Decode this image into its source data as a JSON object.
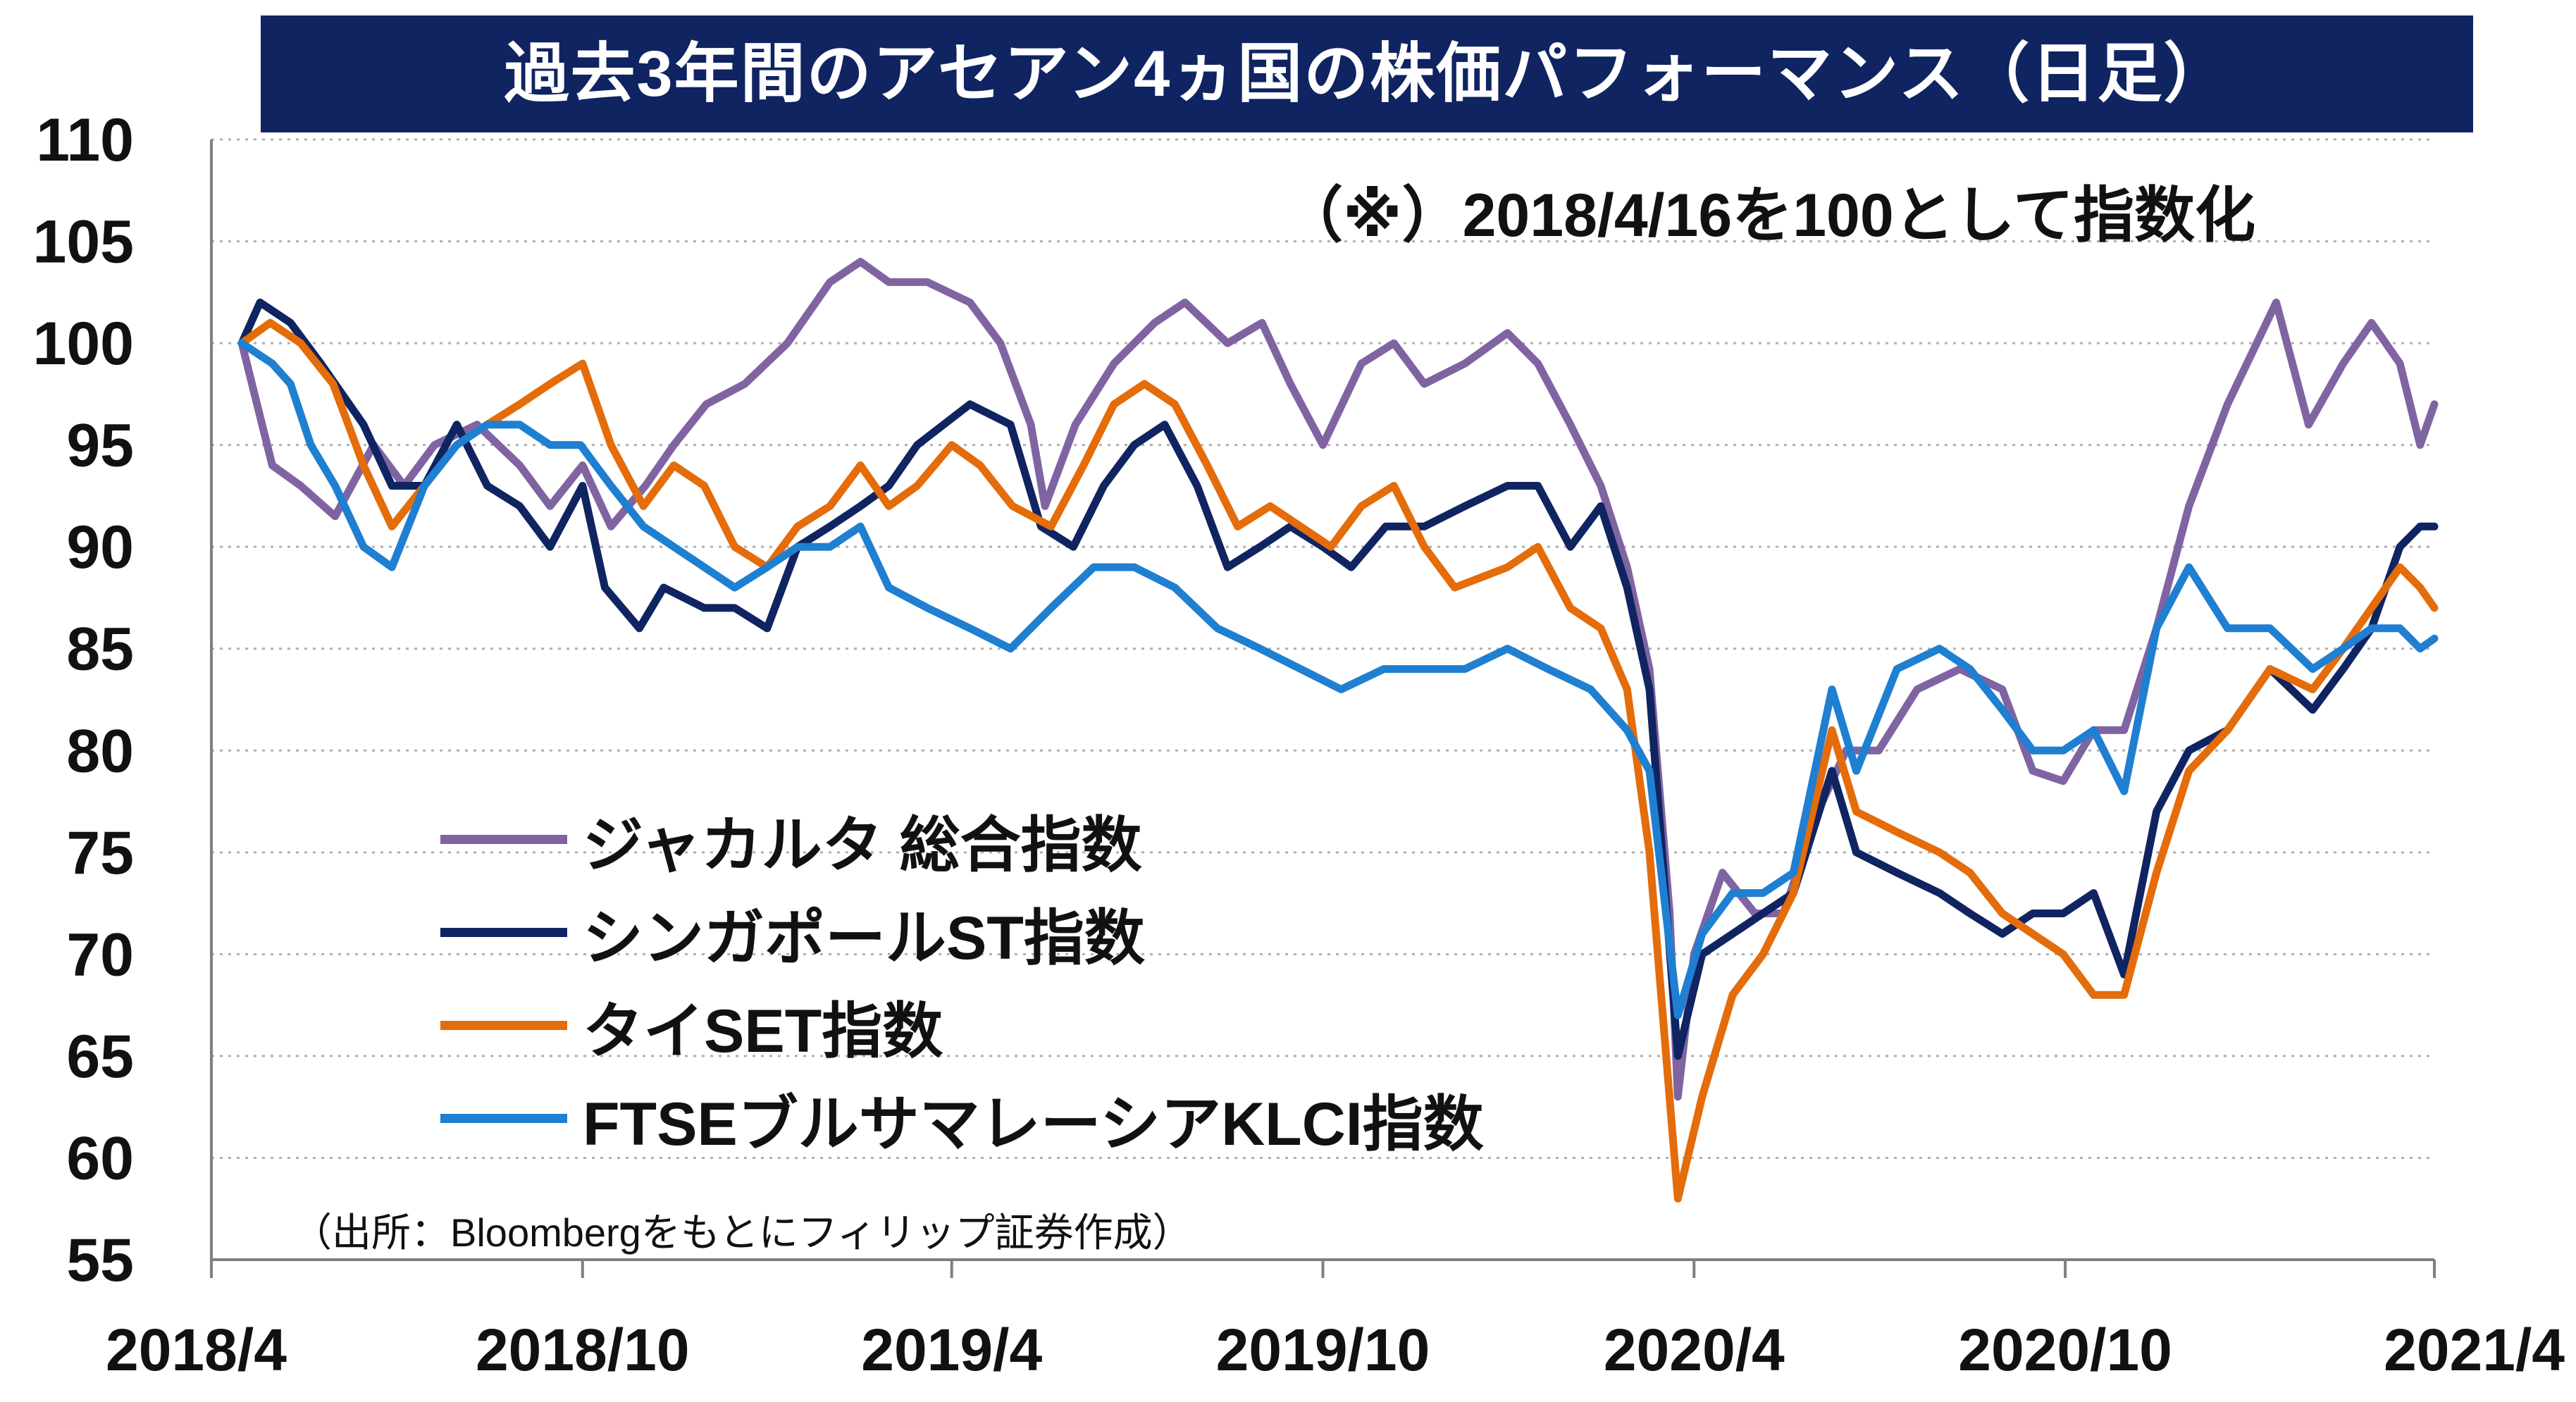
{
  "title": "過去3年間のアセアン4ヵ国の株価パフォーマンス（日足）",
  "note": "（※）2018/4/16を100として指数化",
  "source": "（出所：Bloombergをもとにフィリップ証券作成）",
  "colors": {
    "title_bg": "#0f2461",
    "title_text": "#ffffff",
    "grid": "#b0b0b0",
    "axis": "#7f7f7f"
  },
  "chart_data": {
    "type": "line",
    "title": "過去3年間のアセアン4ヵ国の株価パフォーマンス（日足）",
    "xlabel": "",
    "ylabel": "",
    "ylim": [
      55,
      110
    ],
    "y_ticks": [
      110,
      105,
      100,
      95,
      90,
      85,
      80,
      75,
      70,
      65,
      60,
      55
    ],
    "x_ticks": [
      "2018/4",
      "2018/10",
      "2019/4",
      "2019/10",
      "2020/4",
      "2020/10",
      "2021/4"
    ],
    "x_tick_dates": [
      "2018-04-01",
      "2018-10-01",
      "2019-04-01",
      "2019-10-01",
      "2020-04-01",
      "2020-10-01",
      "2021-04-01"
    ],
    "grid": true,
    "legend_position": "lower-left",
    "series": [
      {
        "name": "ジャカルタ 総合指数",
        "color": "#8064a2",
        "points": [
          [
            "2018-04-16",
            100
          ],
          [
            "2018-05-01",
            94
          ],
          [
            "2018-05-15",
            93
          ],
          [
            "2018-06-01",
            91.5
          ],
          [
            "2018-06-20",
            95
          ],
          [
            "2018-07-05",
            93
          ],
          [
            "2018-07-20",
            95
          ],
          [
            "2018-08-10",
            96
          ],
          [
            "2018-08-31",
            94
          ],
          [
            "2018-09-15",
            92
          ],
          [
            "2018-10-01",
            94
          ],
          [
            "2018-10-15",
            91
          ],
          [
            "2018-11-01",
            93
          ],
          [
            "2018-11-15",
            95
          ],
          [
            "2018-12-01",
            97
          ],
          [
            "2018-12-20",
            98
          ],
          [
            "2019-01-10",
            100
          ],
          [
            "2019-01-31",
            103
          ],
          [
            "2019-02-15",
            104
          ],
          [
            "2019-03-01",
            103
          ],
          [
            "2019-03-20",
            103
          ],
          [
            "2019-04-10",
            102
          ],
          [
            "2019-04-25",
            100
          ],
          [
            "2019-05-10",
            96
          ],
          [
            "2019-05-17",
            92
          ],
          [
            "2019-06-01",
            96
          ],
          [
            "2019-06-20",
            99
          ],
          [
            "2019-07-10",
            101
          ],
          [
            "2019-07-25",
            102
          ],
          [
            "2019-08-15",
            100
          ],
          [
            "2019-09-01",
            101
          ],
          [
            "2019-09-15",
            98
          ],
          [
            "2019-10-01",
            95
          ],
          [
            "2019-10-20",
            99
          ],
          [
            "2019-11-05",
            100
          ],
          [
            "2019-11-20",
            98
          ],
          [
            "2019-12-10",
            99
          ],
          [
            "2019-12-31",
            100.5
          ],
          [
            "2020-01-15",
            99
          ],
          [
            "2020-01-31",
            96
          ],
          [
            "2020-02-15",
            93
          ],
          [
            "2020-02-28",
            89
          ],
          [
            "2020-03-10",
            84
          ],
          [
            "2020-03-20",
            72
          ],
          [
            "2020-03-24",
            63
          ],
          [
            "2020-04-01",
            70
          ],
          [
            "2020-04-15",
            74
          ],
          [
            "2020-05-01",
            72
          ],
          [
            "2020-05-15",
            72
          ],
          [
            "2020-06-01",
            77
          ],
          [
            "2020-06-15",
            80
          ],
          [
            "2020-07-01",
            80
          ],
          [
            "2020-07-20",
            83
          ],
          [
            "2020-08-10",
            84
          ],
          [
            "2020-08-31",
            83
          ],
          [
            "2020-09-15",
            79
          ],
          [
            "2020-09-30",
            78.5
          ],
          [
            "2020-10-15",
            81
          ],
          [
            "2020-10-30",
            81
          ],
          [
            "2020-11-15",
            86
          ],
          [
            "2020-12-01",
            92
          ],
          [
            "2020-12-20",
            97
          ],
          [
            "2021-01-13",
            102
          ],
          [
            "2021-01-29",
            96
          ],
          [
            "2021-02-15",
            99
          ],
          [
            "2021-03-01",
            101
          ],
          [
            "2021-03-15",
            99
          ],
          [
            "2021-03-25",
            95
          ],
          [
            "2021-04-01",
            97
          ]
        ]
      },
      {
        "name": "シンガポールST指数",
        "color": "#0f2461",
        "points": [
          [
            "2018-04-16",
            100
          ],
          [
            "2018-04-25",
            102
          ],
          [
            "2018-05-10",
            101
          ],
          [
            "2018-05-25",
            99
          ],
          [
            "2018-06-15",
            96
          ],
          [
            "2018-06-29",
            93
          ],
          [
            "2018-07-15",
            93
          ],
          [
            "2018-07-31",
            96
          ],
          [
            "2018-08-15",
            93
          ],
          [
            "2018-08-31",
            92
          ],
          [
            "2018-09-15",
            90
          ],
          [
            "2018-10-01",
            93
          ],
          [
            "2018-10-12",
            88
          ],
          [
            "2018-10-29",
            86
          ],
          [
            "2018-11-10",
            88
          ],
          [
            "2018-11-30",
            87
          ],
          [
            "2018-12-15",
            87
          ],
          [
            "2018-12-31",
            86
          ],
          [
            "2019-01-15",
            90
          ],
          [
            "2019-01-31",
            91
          ],
          [
            "2019-02-15",
            92
          ],
          [
            "2019-03-01",
            93
          ],
          [
            "2019-03-15",
            95
          ],
          [
            "2019-04-10",
            97
          ],
          [
            "2019-04-30",
            96
          ],
          [
            "2019-05-15",
            91
          ],
          [
            "2019-05-31",
            90
          ],
          [
            "2019-06-15",
            93
          ],
          [
            "2019-06-30",
            95
          ],
          [
            "2019-07-15",
            96
          ],
          [
            "2019-07-31",
            93
          ],
          [
            "2019-08-15",
            89
          ],
          [
            "2019-08-31",
            90
          ],
          [
            "2019-09-15",
            91
          ],
          [
            "2019-10-01",
            90
          ],
          [
            "2019-10-15",
            89
          ],
          [
            "2019-11-01",
            91
          ],
          [
            "2019-11-20",
            91
          ],
          [
            "2019-12-10",
            92
          ],
          [
            "2019-12-31",
            93
          ],
          [
            "2020-01-15",
            93
          ],
          [
            "2020-01-31",
            90
          ],
          [
            "2020-02-15",
            92
          ],
          [
            "2020-02-28",
            88
          ],
          [
            "2020-03-10",
            83
          ],
          [
            "2020-03-24",
            65
          ],
          [
            "2020-04-05",
            70
          ],
          [
            "2020-04-20",
            71
          ],
          [
            "2020-05-05",
            72
          ],
          [
            "2020-05-20",
            73
          ],
          [
            "2020-06-08",
            79
          ],
          [
            "2020-06-20",
            75
          ],
          [
            "2020-07-10",
            74
          ],
          [
            "2020-07-31",
            73
          ],
          [
            "2020-08-15",
            72
          ],
          [
            "2020-08-31",
            71
          ],
          [
            "2020-09-15",
            72
          ],
          [
            "2020-09-30",
            72
          ],
          [
            "2020-10-15",
            73
          ],
          [
            "2020-10-30",
            69
          ],
          [
            "2020-11-15",
            77
          ],
          [
            "2020-12-01",
            80
          ],
          [
            "2020-12-20",
            81
          ],
          [
            "2021-01-10",
            84
          ],
          [
            "2021-01-31",
            82
          ],
          [
            "2021-02-15",
            84
          ],
          [
            "2021-03-01",
            86
          ],
          [
            "2021-03-15",
            90
          ],
          [
            "2021-03-25",
            91
          ],
          [
            "2021-04-01",
            91
          ]
        ]
      },
      {
        "name": "タイSET指数",
        "color": "#e46c0a",
        "points": [
          [
            "2018-04-16",
            100
          ],
          [
            "2018-04-30",
            101
          ],
          [
            "2018-05-15",
            100
          ],
          [
            "2018-05-31",
            98
          ],
          [
            "2018-06-15",
            94
          ],
          [
            "2018-06-29",
            91
          ],
          [
            "2018-07-15",
            93
          ],
          [
            "2018-07-31",
            95
          ],
          [
            "2018-08-15",
            96
          ],
          [
            "2018-08-31",
            97
          ],
          [
            "2018-09-15",
            98
          ],
          [
            "2018-10-01",
            99
          ],
          [
            "2018-10-15",
            95
          ],
          [
            "2018-10-31",
            92
          ],
          [
            "2018-11-15",
            94
          ],
          [
            "2018-11-30",
            93
          ],
          [
            "2018-12-15",
            90
          ],
          [
            "2018-12-31",
            89
          ],
          [
            "2019-01-15",
            91
          ],
          [
            "2019-01-31",
            92
          ],
          [
            "2019-02-15",
            94
          ],
          [
            "2019-03-01",
            92
          ],
          [
            "2019-03-15",
            93
          ],
          [
            "2019-04-01",
            95
          ],
          [
            "2019-04-15",
            94
          ],
          [
            "2019-05-01",
            92
          ],
          [
            "2019-05-20",
            91
          ],
          [
            "2019-06-05",
            94
          ],
          [
            "2019-06-20",
            97
          ],
          [
            "2019-07-05",
            98
          ],
          [
            "2019-07-20",
            97
          ],
          [
            "2019-08-05",
            94
          ],
          [
            "2019-08-20",
            91
          ],
          [
            "2019-09-05",
            92
          ],
          [
            "2019-09-20",
            91
          ],
          [
            "2019-10-05",
            90
          ],
          [
            "2019-10-20",
            92
          ],
          [
            "2019-11-05",
            93
          ],
          [
            "2019-11-20",
            90
          ],
          [
            "2019-12-05",
            88
          ],
          [
            "2019-12-31",
            89
          ],
          [
            "2020-01-15",
            90
          ],
          [
            "2020-01-31",
            87
          ],
          [
            "2020-02-15",
            86
          ],
          [
            "2020-02-28",
            83
          ],
          [
            "2020-03-10",
            75
          ],
          [
            "2020-03-24",
            58
          ],
          [
            "2020-04-05",
            63
          ],
          [
            "2020-04-20",
            68
          ],
          [
            "2020-05-05",
            70
          ],
          [
            "2020-05-20",
            73
          ],
          [
            "2020-06-08",
            81
          ],
          [
            "2020-06-20",
            77
          ],
          [
            "2020-07-10",
            76
          ],
          [
            "2020-07-31",
            75
          ],
          [
            "2020-08-15",
            74
          ],
          [
            "2020-08-31",
            72
          ],
          [
            "2020-09-15",
            71
          ],
          [
            "2020-09-30",
            70
          ],
          [
            "2020-10-15",
            68
          ],
          [
            "2020-10-30",
            68
          ],
          [
            "2020-11-15",
            74
          ],
          [
            "2020-12-01",
            79
          ],
          [
            "2020-12-20",
            81
          ],
          [
            "2021-01-10",
            84
          ],
          [
            "2021-01-31",
            83
          ],
          [
            "2021-02-15",
            85
          ],
          [
            "2021-03-01",
            87
          ],
          [
            "2021-03-15",
            89
          ],
          [
            "2021-03-25",
            88
          ],
          [
            "2021-04-01",
            87
          ]
        ]
      },
      {
        "name": "FTSEブルサマレーシアKLCI指数",
        "color": "#1f7fd1",
        "points": [
          [
            "2018-04-16",
            100
          ],
          [
            "2018-05-01",
            99
          ],
          [
            "2018-05-10",
            98
          ],
          [
            "2018-05-20",
            95
          ],
          [
            "2018-06-01",
            93
          ],
          [
            "2018-06-15",
            90
          ],
          [
            "2018-06-29",
            89
          ],
          [
            "2018-07-15",
            93
          ],
          [
            "2018-07-31",
            95
          ],
          [
            "2018-08-15",
            96
          ],
          [
            "2018-08-31",
            96
          ],
          [
            "2018-09-15",
            95
          ],
          [
            "2018-09-30",
            95
          ],
          [
            "2018-10-15",
            93
          ],
          [
            "2018-10-31",
            91
          ],
          [
            "2018-11-15",
            90
          ],
          [
            "2018-11-30",
            89
          ],
          [
            "2018-12-15",
            88
          ],
          [
            "2018-12-31",
            89
          ],
          [
            "2019-01-15",
            90
          ],
          [
            "2019-01-31",
            90
          ],
          [
            "2019-02-15",
            91
          ],
          [
            "2019-03-01",
            88
          ],
          [
            "2019-03-20",
            87
          ],
          [
            "2019-04-10",
            86
          ],
          [
            "2019-04-30",
            85
          ],
          [
            "2019-05-20",
            87
          ],
          [
            "2019-06-10",
            89
          ],
          [
            "2019-06-30",
            89
          ],
          [
            "2019-07-20",
            88
          ],
          [
            "2019-08-10",
            86
          ],
          [
            "2019-08-31",
            85
          ],
          [
            "2019-09-20",
            84
          ],
          [
            "2019-10-10",
            83
          ],
          [
            "2019-10-31",
            84
          ],
          [
            "2019-11-20",
            84
          ],
          [
            "2019-12-10",
            84
          ],
          [
            "2019-12-31",
            85
          ],
          [
            "2020-01-20",
            84
          ],
          [
            "2020-02-10",
            83
          ],
          [
            "2020-02-28",
            81
          ],
          [
            "2020-03-10",
            79
          ],
          [
            "2020-03-24",
            67
          ],
          [
            "2020-04-05",
            71
          ],
          [
            "2020-04-20",
            73
          ],
          [
            "2020-05-05",
            73
          ],
          [
            "2020-05-20",
            74
          ],
          [
            "2020-06-08",
            83
          ],
          [
            "2020-06-20",
            79
          ],
          [
            "2020-07-10",
            84
          ],
          [
            "2020-07-31",
            85
          ],
          [
            "2020-08-15",
            84
          ],
          [
            "2020-08-31",
            82
          ],
          [
            "2020-09-15",
            80
          ],
          [
            "2020-09-30",
            80
          ],
          [
            "2020-10-15",
            81
          ],
          [
            "2020-10-30",
            78
          ],
          [
            "2020-11-15",
            86
          ],
          [
            "2020-12-01",
            89
          ],
          [
            "2020-12-20",
            86
          ],
          [
            "2021-01-10",
            86
          ],
          [
            "2021-01-31",
            84
          ],
          [
            "2021-02-15",
            85
          ],
          [
            "2021-03-01",
            86
          ],
          [
            "2021-03-15",
            86
          ],
          [
            "2021-03-25",
            85
          ],
          [
            "2021-04-01",
            85.5
          ]
        ]
      }
    ]
  }
}
